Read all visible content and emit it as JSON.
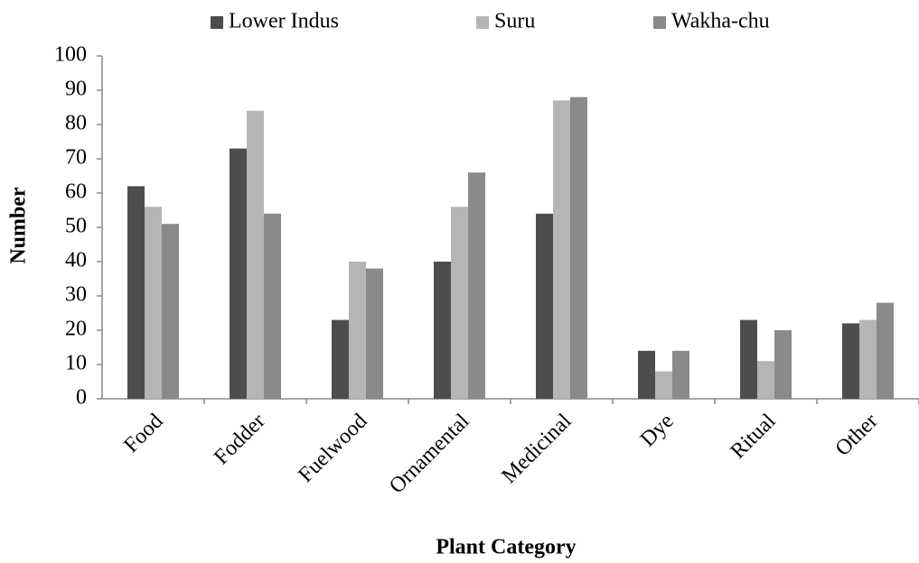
{
  "chart_data": {
    "type": "bar",
    "categories": [
      "Food",
      "Fodder",
      "Fuelwood",
      "Ornamental",
      "Medicinal",
      "Dye",
      "Ritual",
      "Other"
    ],
    "series": [
      {
        "name": "Lower Indus",
        "color": "#4d4d4d",
        "values": [
          62,
          73,
          23,
          40,
          54,
          14,
          23,
          22
        ]
      },
      {
        "name": "Suru",
        "color": "#b5b5b5",
        "values": [
          56,
          84,
          40,
          56,
          87,
          8,
          11,
          23
        ]
      },
      {
        "name": "Wakha-chu",
        "color": "#8a8a8a",
        "values": [
          51,
          54,
          38,
          66,
          88,
          14,
          20,
          28
        ]
      }
    ],
    "xlabel": "Plant Category",
    "ylabel": "Number",
    "ylim": [
      0,
      100
    ],
    "yticks": [
      0,
      10,
      20,
      30,
      40,
      50,
      60,
      70,
      80,
      90,
      100
    ],
    "legend": "top",
    "grid": false
  }
}
